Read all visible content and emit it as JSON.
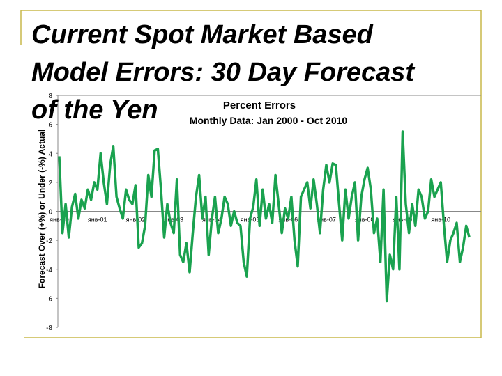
{
  "slide_title": [
    "Current Spot Market Based",
    "Model  Errors: 30 Day Forecast",
    "of the Yen"
  ],
  "chart_data": {
    "type": "line",
    "title": "Percent Errors",
    "subtitle": "Monthly Data: Jan 2000 - Oct 2010",
    "y_label": "Forecast Over (+%) or Under (-%) Actual",
    "categories": [
      "янв-00",
      null,
      null,
      null,
      null,
      null,
      null,
      null,
      null,
      null,
      null,
      null,
      "янв-01",
      null,
      null,
      null,
      null,
      null,
      null,
      null,
      null,
      null,
      null,
      null,
      "янв-02",
      null,
      null,
      null,
      null,
      null,
      null,
      null,
      null,
      null,
      null,
      null,
      "янв-03",
      null,
      null,
      null,
      null,
      null,
      null,
      null,
      null,
      null,
      null,
      null,
      "янв-04",
      null,
      null,
      null,
      null,
      null,
      null,
      null,
      null,
      null,
      null,
      null,
      "янв-05",
      null,
      null,
      null,
      null,
      null,
      null,
      null,
      null,
      null,
      null,
      null,
      "янв-06",
      null,
      null,
      null,
      null,
      null,
      null,
      null,
      null,
      null,
      null,
      null,
      "янв-07",
      null,
      null,
      null,
      null,
      null,
      null,
      null,
      null,
      null,
      null,
      null,
      "янв-08",
      null,
      null,
      null,
      null,
      null,
      null,
      null,
      null,
      null,
      null,
      null,
      "янв-09",
      null,
      null,
      null,
      null,
      null,
      null,
      null,
      null,
      null,
      null,
      null,
      "янв-10",
      null,
      null,
      null,
      null,
      null,
      null,
      null,
      null,
      null
    ],
    "values": [
      3.8,
      -1.5,
      0.5,
      -1.8,
      0.3,
      1.2,
      -0.5,
      0.8,
      0.2,
      1.5,
      0.8,
      2.0,
      1.5,
      4.0,
      2.0,
      0.5,
      3.2,
      4.5,
      1.0,
      0.2,
      -0.5,
      1.5,
      0.8,
      0.5,
      1.8,
      -2.5,
      -2.2,
      -1.0,
      2.5,
      1.0,
      4.2,
      4.3,
      1.5,
      -1.8,
      0.5,
      -0.8,
      -1.5,
      2.2,
      -3.0,
      -3.5,
      -2.2,
      -4.2,
      -1.5,
      1.0,
      2.5,
      -0.5,
      1.0,
      -3.0,
      -0.5,
      1.0,
      -1.5,
      -0.5,
      1.0,
      0.5,
      -1.0,
      0.0,
      -0.8,
      -1.0,
      -3.5,
      -4.5,
      -0.5,
      0.3,
      2.2,
      -1.0,
      1.5,
      -0.5,
      0.5,
      -0.8,
      2.5,
      0.5,
      -1.5,
      0.2,
      -0.5,
      1.0,
      -2.0,
      -3.8,
      1.0,
      1.5,
      2.0,
      0.2,
      2.2,
      0.5,
      -1.5,
      1.5,
      3.2,
      2.0,
      3.3,
      3.2,
      0.5,
      -2.0,
      1.5,
      -0.5,
      1.0,
      2.0,
      -2.0,
      1.0,
      2.2,
      3.0,
      1.5,
      -1.5,
      -0.5,
      -3.5,
      1.5,
      -6.2,
      -3.0,
      -4.0,
      1.0,
      -4.0,
      5.5,
      0.5,
      -1.5,
      0.5,
      -1.0,
      1.5,
      1.0,
      -0.5,
      0.0,
      2.2,
      1.0,
      1.5,
      2.0,
      -1.0,
      -3.5,
      -2.0,
      -1.5,
      -0.8,
      -3.5,
      -2.5,
      -1.0,
      -1.8
    ],
    "color": "#1aa24f",
    "ylim": [
      -8,
      8
    ],
    "yticks": [
      -8,
      -6,
      -4,
      -2,
      0,
      2,
      4,
      6,
      8
    ]
  }
}
